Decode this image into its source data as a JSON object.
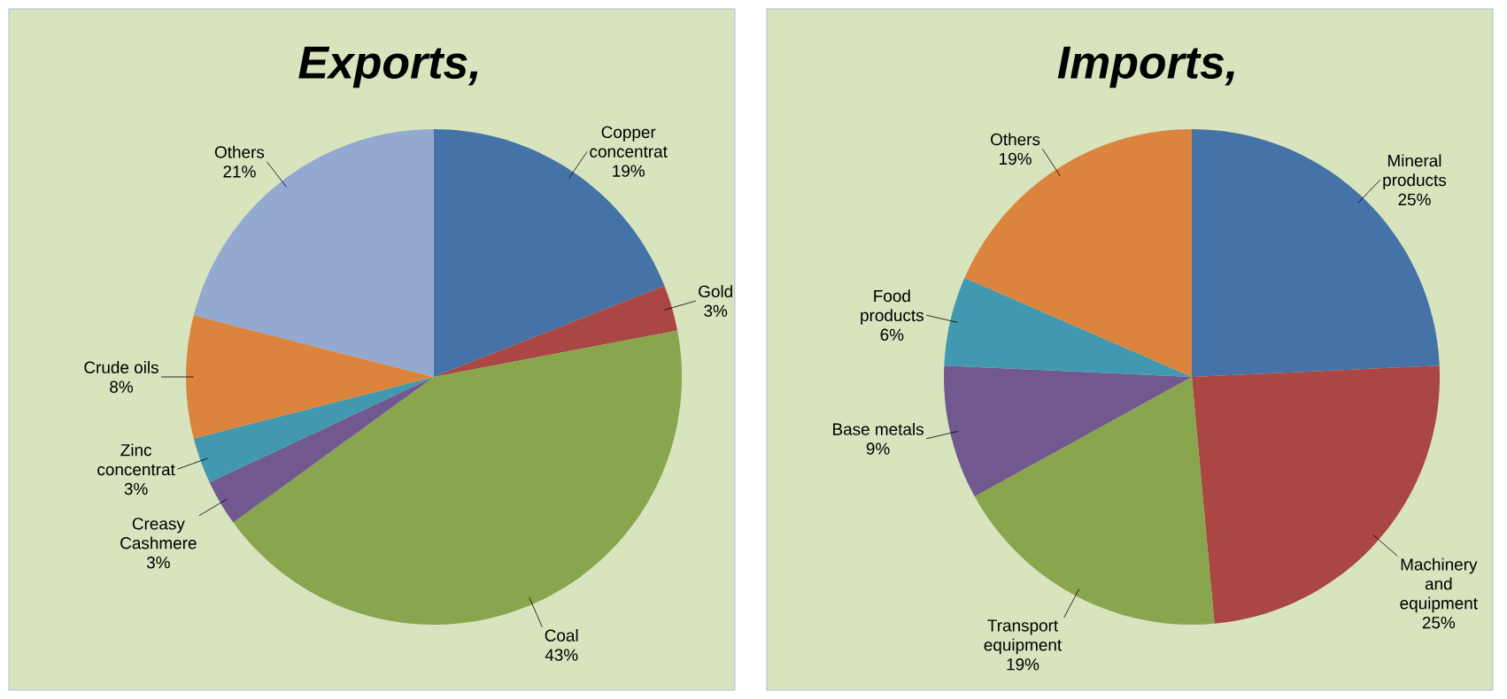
{
  "chart_data": [
    {
      "type": "pie",
      "title": "Exports,",
      "categories": [
        "Copper concentrat",
        "Gold",
        "Coal",
        "Creasy Cashmere",
        "Zinc concentrat",
        "Crude oils",
        "Others"
      ],
      "values": [
        19,
        3,
        43,
        3,
        3,
        8,
        21
      ],
      "value_labels": [
        "19%",
        "3%",
        "43%",
        "3%",
        "3%",
        "8%",
        "21%"
      ],
      "colors": [
        "#4572a7",
        "#aa4643",
        "#89a54e",
        "#71588f",
        "#4198af",
        "#db843d",
        "#93a9cf"
      ]
    },
    {
      "type": "pie",
      "title": "Imports,",
      "categories": [
        "Mineral products",
        "Machinery and equipment",
        "Transport equipment",
        "Base metals",
        "Food products",
        "Others"
      ],
      "values": [
        25,
        25,
        19,
        9,
        6,
        19
      ],
      "value_labels": [
        "25%",
        "25%",
        "19%",
        "9%",
        "6%",
        "19%"
      ],
      "colors": [
        "#4572a7",
        "#aa4643",
        "#89a54e",
        "#71588f",
        "#4198af",
        "#db843d"
      ]
    }
  ]
}
